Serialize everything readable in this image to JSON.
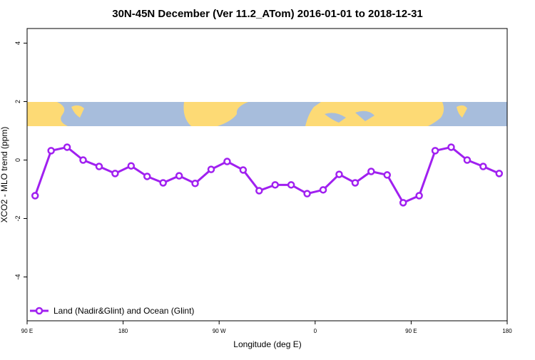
{
  "chart_data": {
    "type": "line",
    "title": "30N-45N December (Ver 11.2_ATom)   2016-01-01 to 2018-12-31",
    "x_label": "Longitude (deg E)",
    "y_label": "XCO2 - MLO trend (ppm)",
    "x": [
      97.5,
      112.5,
      127.5,
      142.5,
      157.5,
      172.5,
      187.5,
      202.5,
      217.5,
      232.5,
      247.5,
      262.5,
      277.5,
      292.5,
      307.5,
      322.5,
      337.5,
      352.5,
      367.5,
      382.5,
      397.5,
      412.5,
      427.5,
      442.5,
      457.5,
      472.5,
      487.5,
      502.5,
      517.5,
      532.5
    ],
    "series": [
      {
        "name": "Land (Nadir&Glint) and Ocean (Glint)",
        "color": "#a020f0",
        "values": [
          -1.22,
          0.32,
          0.44,
          0.0,
          -0.22,
          -0.46,
          -0.2,
          -0.56,
          -0.78,
          -0.54,
          -0.8,
          -0.32,
          -0.05,
          -0.34,
          -1.05,
          -0.85,
          -0.85,
          -1.15,
          -1.02,
          -0.49,
          -0.78,
          -0.39,
          -0.51,
          -1.46,
          -1.22,
          0.32,
          0.44,
          0.0,
          -0.22,
          -0.46
        ]
      }
    ],
    "xlim": [
      90,
      540
    ],
    "ylim": [
      -5.5,
      4.5
    ],
    "xticks": [
      {
        "value": 90,
        "label": "90 E"
      },
      180,
      {
        "value": 270,
        "label": "90 W"
      },
      {
        "value": 360,
        "label": "0"
      },
      {
        "value": 450,
        "label": "90 E"
      },
      {
        "value": 540,
        "label": "180"
      }
    ],
    "yticks": [
      -4,
      -2,
      0,
      2,
      4
    ],
    "legend": "bottom-left"
  }
}
